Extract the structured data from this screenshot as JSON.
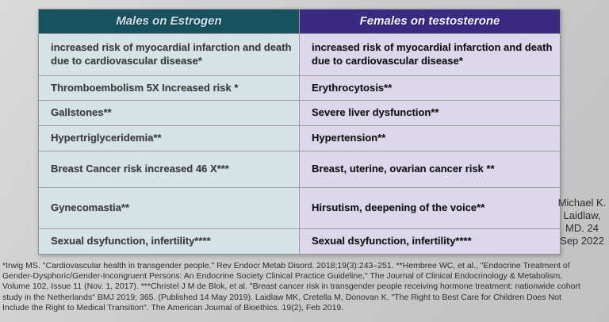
{
  "colors": {
    "header-left-bg": "#17525f",
    "header-left-text": "#cfe0e8",
    "header-right-bg": "#3a2a84",
    "header-right-text": "#f4f3fa",
    "left-cell-bg": "#d6e3e6",
    "left-cell-text": "#3c3c3c",
    "right-cell-bg": "#ddd7ec",
    "right-cell-text": "#121212",
    "grid-line": "#9c9c9c",
    "table-border": "#8f9597",
    "note-text": "#2f2f2f"
  },
  "table": {
    "headers": [
      "Males on Estrogen",
      "Females on testosterone"
    ],
    "rows": [
      {
        "left": "increased risk of myocardial infarction and death due to cardiovascular disease*",
        "right": "increased risk of myocardial infarction and death due to cardiovascular disease*"
      },
      {
        "left": "Thromboembolism 5X Increased risk *",
        "right": "Erythrocytosis**"
      },
      {
        "left": "Gallstones**",
        "right": "Severe liver dysfunction**"
      },
      {
        "left": "Hypertriglyceridemia**",
        "right": "Hypertension**"
      },
      {
        "left": "Breast Cancer risk increased 46 X***",
        "right": "Breast, uterine, ovarian cancer risk **"
      },
      {
        "left": "Gynecomastia**",
        "right": "Hirsutism, deepening of the voice**"
      },
      {
        "left": "Sexual dsyfunction, infertility****",
        "right": "Sexual dsyfunction, infertility****"
      }
    ]
  },
  "attribution": {
    "lines": [
      "Michael K.",
      "Laidlaw,",
      "MD. 24",
      "Sep 2022"
    ]
  },
  "footnotes": {
    "lines": [
      "*Irwig MS. \"Cardiovascular health in transgender people.\" Rev Endocr Metab Disord. 2018;19(3):243–251. **Hembree WC, et al., \"Endocrine Treatment of",
      "Gender-Dysphoric/Gender-Incongruent Persons: An Endocrine Society Clinical Practice Guideline,\" The Journal of Clinical Endocrinology & Metabolism,",
      "Volume 102, Issue 11 (Nov. 1, 2017). ***Christel J M de Blok, et al. \"Breast cancer risk in transgender people receiving hormone treatment: nationwide cohort",
      "study in the Netherlands\" BMJ 2019; 365. (Published 14 May 2019). Laidlaw MK, Cretella M, Donovan K. \"The Right to Best Care for Children Does Not",
      "Include the Right to Medical Transition\". The American Journal of Bioethics. 19(2), Feb 2019."
    ]
  }
}
